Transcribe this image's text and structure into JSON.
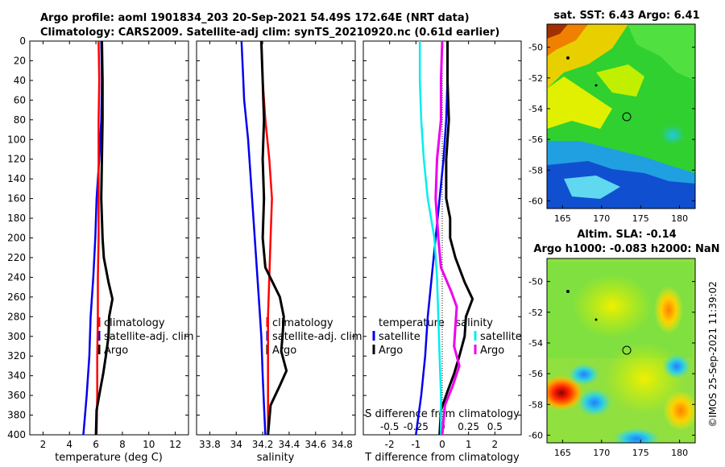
{
  "header": {
    "line1": "Argo profile: aoml 1901834_203 20-Sep-2021 54.49S 172.64E (NRT data)",
    "line2": "Climatology: CARS2009. Satellite-adj clim: synTS_20210920.nc (0.61d earlier)"
  },
  "chart_data": [
    {
      "type": "line",
      "panel": "temperature",
      "xlabel": "temperature (deg C)",
      "ylabel": "",
      "xlim": [
        1,
        13
      ],
      "ylim": [
        400,
        0
      ],
      "xticks": [
        "2",
        "4",
        "6",
        "8",
        "10",
        "12"
      ],
      "xtick_values": [
        2,
        4,
        6,
        8,
        10,
        12
      ],
      "yticks": [
        "0",
        "20",
        "40",
        "60",
        "80",
        "100",
        "120",
        "140",
        "160",
        "180",
        "200",
        "220",
        "240",
        "260",
        "280",
        "300",
        "320",
        "340",
        "360",
        "380",
        "400"
      ],
      "ytick_values": [
        0,
        20,
        40,
        60,
        80,
        100,
        120,
        140,
        160,
        180,
        200,
        220,
        240,
        260,
        280,
        300,
        320,
        340,
        360,
        380,
        400
      ],
      "legend": [
        "climatology",
        "satellite-adj. clim",
        "Argo"
      ],
      "series": [
        {
          "name": "satellite-adj. clim",
          "color": "#0000ee",
          "points": [
            [
              6.4,
              0
            ],
            [
              6.45,
              40
            ],
            [
              6.4,
              80
            ],
            [
              6.25,
              120
            ],
            [
              6.05,
              160
            ],
            [
              5.95,
              200
            ],
            [
              5.8,
              240
            ],
            [
              5.6,
              280
            ],
            [
              5.5,
              320
            ],
            [
              5.3,
              360
            ],
            [
              5.05,
              400
            ]
          ]
        },
        {
          "name": "climatology",
          "color": "#ff0000",
          "points": [
            [
              6.2,
              0
            ],
            [
              6.25,
              40
            ],
            [
              6.2,
              80
            ],
            [
              6.2,
              120
            ],
            [
              6.2,
              160
            ],
            [
              6.2,
              200
            ],
            [
              6.15,
              240
            ],
            [
              6.15,
              280
            ],
            [
              6.1,
              320
            ],
            [
              6.1,
              360
            ],
            [
              6.05,
              400
            ]
          ]
        },
        {
          "name": "Argo",
          "color": "#000000",
          "points": [
            [
              6.45,
              0
            ],
            [
              6.5,
              40
            ],
            [
              6.5,
              80
            ],
            [
              6.45,
              120
            ],
            [
              6.4,
              160
            ],
            [
              6.45,
              180
            ],
            [
              6.5,
              200
            ],
            [
              6.6,
              220
            ],
            [
              6.95,
              245
            ],
            [
              7.25,
              262
            ],
            [
              7.0,
              280
            ],
            [
              6.95,
              300
            ],
            [
              6.75,
              320
            ],
            [
              6.55,
              338
            ],
            [
              6.3,
              356
            ],
            [
              6.05,
              375
            ],
            [
              6.0,
              400
            ]
          ]
        }
      ]
    },
    {
      "type": "line",
      "panel": "salinity",
      "xlabel": "salinity",
      "ylabel": "",
      "xlim": [
        33.7,
        34.9
      ],
      "ylim": [
        400,
        0
      ],
      "xticks": [
        "33.8",
        "34",
        "34.2",
        "34.4",
        "34.6",
        "34.8"
      ],
      "xtick_values": [
        33.8,
        34.0,
        34.2,
        34.4,
        34.6,
        34.8
      ],
      "legend": [
        "climatology",
        "satellite-adj. clim",
        "Argo"
      ],
      "series": [
        {
          "name": "satellite-adj. clim",
          "color": "#0000ee",
          "points": [
            [
              34.04,
              0
            ],
            [
              34.05,
              30
            ],
            [
              34.06,
              60
            ],
            [
              34.09,
              100
            ],
            [
              34.11,
              140
            ],
            [
              34.13,
              180
            ],
            [
              34.15,
              220
            ],
            [
              34.17,
              260
            ],
            [
              34.19,
              300
            ],
            [
              34.2,
              340
            ],
            [
              34.21,
              370
            ],
            [
              34.22,
              400
            ]
          ]
        },
        {
          "name": "climatology",
          "color": "#ff0000",
          "points": [
            [
              34.19,
              0
            ],
            [
              34.2,
              40
            ],
            [
              34.22,
              80
            ],
            [
              34.25,
              120
            ],
            [
              34.27,
              160
            ],
            [
              34.26,
              200
            ],
            [
              34.25,
              240
            ],
            [
              34.24,
              280
            ],
            [
              34.24,
              320
            ],
            [
              34.24,
              360
            ],
            [
              34.24,
              400
            ]
          ]
        },
        {
          "name": "Argo",
          "color": "#000000",
          "points": [
            [
              34.19,
              0
            ],
            [
              34.2,
              40
            ],
            [
              34.21,
              80
            ],
            [
              34.2,
              120
            ],
            [
              34.21,
              160
            ],
            [
              34.2,
              200
            ],
            [
              34.22,
              230
            ],
            [
              34.33,
              260
            ],
            [
              34.36,
              280
            ],
            [
              34.35,
              300
            ],
            [
              34.34,
              315
            ],
            [
              34.38,
              335
            ],
            [
              34.33,
              350
            ],
            [
              34.26,
              370
            ],
            [
              34.24,
              400
            ]
          ]
        }
      ]
    },
    {
      "type": "line",
      "panel": "difference",
      "xlabel": "T difference from climatology",
      "xlabel_top": "S difference from climatology",
      "xlim": [
        -3,
        3
      ],
      "ylim": [
        400,
        0
      ],
      "xticks": [
        "-2",
        "-1",
        "0",
        "1",
        "2"
      ],
      "xtick_values": [
        -2,
        -1,
        0,
        1,
        2
      ],
      "xticks_top": [
        "-0.5",
        "-0.25",
        "0",
        "0.25",
        "0.5"
      ],
      "legend_titles": [
        "temperature",
        "salinity"
      ],
      "legend": [
        "satellite",
        "Argo",
        "satellite",
        "Argo"
      ],
      "series": [
        {
          "name": "temperature satellite",
          "color": "#0000ee",
          "points": [
            [
              0.2,
              0
            ],
            [
              0.2,
              40
            ],
            [
              0.15,
              80
            ],
            [
              0.05,
              120
            ],
            [
              -0.1,
              160
            ],
            [
              -0.25,
              200
            ],
            [
              -0.4,
              240
            ],
            [
              -0.55,
              280
            ],
            [
              -0.65,
              320
            ],
            [
              -0.8,
              360
            ],
            [
              -1.0,
              400
            ]
          ]
        },
        {
          "name": "temperature Argo",
          "color": "#000000",
          "points": [
            [
              0.2,
              0
            ],
            [
              0.2,
              40
            ],
            [
              0.25,
              80
            ],
            [
              0.15,
              120
            ],
            [
              0.15,
              160
            ],
            [
              0.3,
              180
            ],
            [
              0.3,
              200
            ],
            [
              0.5,
              220
            ],
            [
              0.85,
              245
            ],
            [
              1.15,
              262
            ],
            [
              0.9,
              280
            ],
            [
              0.85,
              300
            ],
            [
              0.65,
              320
            ],
            [
              0.45,
              338
            ],
            [
              0.2,
              356
            ],
            [
              -0.05,
              375
            ],
            [
              -0.1,
              400
            ]
          ]
        },
        {
          "name": "salinity satellite",
          "color": "#00eeee",
          "points": [
            [
              -0.85,
              0
            ],
            [
              -0.85,
              40
            ],
            [
              -0.8,
              80
            ],
            [
              -0.7,
              120
            ],
            [
              -0.55,
              160
            ],
            [
              -0.3,
              200
            ],
            [
              -0.2,
              240
            ],
            [
              -0.15,
              280
            ],
            [
              -0.1,
              320
            ],
            [
              -0.05,
              360
            ],
            [
              -0.05,
              400
            ]
          ]
        },
        {
          "name": "salinity Argo",
          "color": "#ee00ee",
          "points": [
            [
              0.0,
              0
            ],
            [
              -0.05,
              40
            ],
            [
              -0.05,
              80
            ],
            [
              -0.2,
              120
            ],
            [
              -0.25,
              160
            ],
            [
              -0.15,
              200
            ],
            [
              -0.05,
              230
            ],
            [
              0.35,
              255
            ],
            [
              0.55,
              270
            ],
            [
              0.5,
              290
            ],
            [
              0.45,
              310
            ],
            [
              0.65,
              330
            ],
            [
              0.4,
              350
            ],
            [
              0.1,
              370
            ],
            [
              0.0,
              400
            ]
          ]
        }
      ]
    },
    {
      "type": "heatmap",
      "panel": "satellite SST map",
      "title": "sat. SST: 6.43 Argo: 6.41",
      "xlim": [
        163,
        182
      ],
      "ylim": [
        -60.5,
        -48.5
      ],
      "xticks": [
        "165",
        "170",
        "175",
        "180"
      ],
      "xtick_values": [
        165,
        170,
        175,
        180
      ],
      "yticks": [
        "-50",
        "-52",
        "-54",
        "-56",
        "-58",
        "-60"
      ],
      "ytick_values": [
        -50,
        -52,
        -54,
        -56,
        -58,
        -60
      ],
      "argo_position": [
        172.64,
        -54.49
      ]
    },
    {
      "type": "heatmap",
      "panel": "altimetry SLA map",
      "title": "Altim. SLA: -0.14",
      "subtitle": "Argo h1000: -0.083 h2000: NaN",
      "xlim": [
        163,
        182
      ],
      "ylim": [
        -60.5,
        -48.5
      ],
      "xticks": [
        "165",
        "170",
        "175",
        "180"
      ],
      "xtick_values": [
        165,
        170,
        175,
        180
      ],
      "yticks": [
        "-50",
        "-52",
        "-54",
        "-56",
        "-58",
        "-60"
      ],
      "ytick_values": [
        -50,
        -52,
        -54,
        -56,
        -58,
        -60
      ],
      "argo_position": [
        172.64,
        -54.49
      ]
    }
  ],
  "watermark": "©IMOS 25-Sep-2021 11:39:02"
}
